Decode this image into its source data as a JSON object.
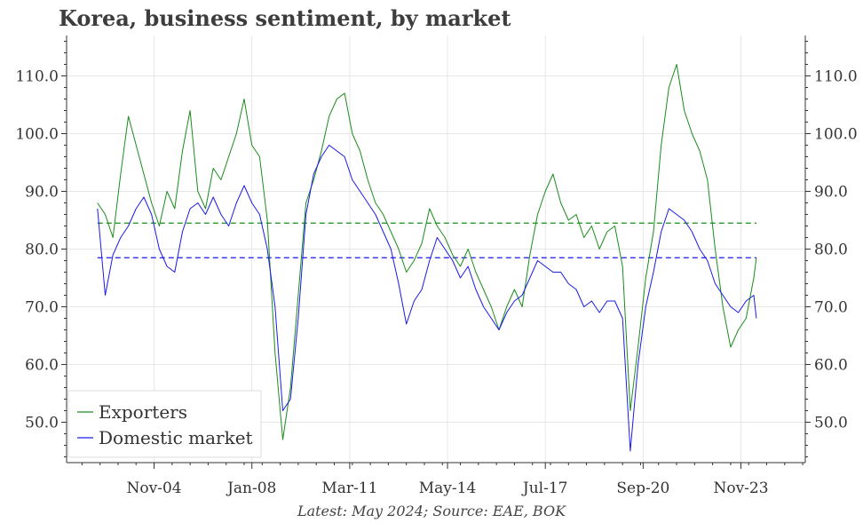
{
  "title": "Korea, business sentiment, by market",
  "caption": "Latest: May 2024; Source: EAE, BOK",
  "chart_data": {
    "type": "line",
    "title": "Korea, business sentiment, by market",
    "xlabel": "",
    "ylabel": "",
    "ylim": [
      43,
      117
    ],
    "xlim": [
      "2002-01",
      "2025-12"
    ],
    "yticks": [
      "50.0",
      "60.0",
      "70.0",
      "80.0",
      "90.0",
      "100.0",
      "110.0"
    ],
    "xticks": [
      {
        "label": "Nov-04",
        "date": "2004-11"
      },
      {
        "label": "Jan-08",
        "date": "2008-01"
      },
      {
        "label": "Mar-11",
        "date": "2011-03"
      },
      {
        "label": "May-14",
        "date": "2014-05"
      },
      {
        "label": "Jul-17",
        "date": "2017-07"
      },
      {
        "label": "Sep-20",
        "date": "2020-09"
      },
      {
        "label": "Nov-23",
        "date": "2023-11"
      }
    ],
    "grid": true,
    "legend_position": "bottom-left",
    "series": [
      {
        "name": "Exporters",
        "color": "#1a8c1a",
        "mean": 84.5,
        "x": [
          "2003-01",
          "2003-04",
          "2003-07",
          "2003-10",
          "2004-01",
          "2004-04",
          "2004-07",
          "2004-10",
          "2005-01",
          "2005-04",
          "2005-07",
          "2005-10",
          "2006-01",
          "2006-04",
          "2006-07",
          "2006-10",
          "2007-01",
          "2007-04",
          "2007-07",
          "2007-10",
          "2008-01",
          "2008-04",
          "2008-07",
          "2008-10",
          "2009-01",
          "2009-04",
          "2009-07",
          "2009-10",
          "2010-01",
          "2010-04",
          "2010-07",
          "2010-10",
          "2011-01",
          "2011-04",
          "2011-07",
          "2011-10",
          "2012-01",
          "2012-04",
          "2012-07",
          "2012-10",
          "2013-01",
          "2013-04",
          "2013-07",
          "2013-10",
          "2014-01",
          "2014-04",
          "2014-07",
          "2014-10",
          "2015-01",
          "2015-04",
          "2015-07",
          "2015-10",
          "2016-01",
          "2016-04",
          "2016-07",
          "2016-10",
          "2017-01",
          "2017-04",
          "2017-07",
          "2017-10",
          "2018-01",
          "2018-04",
          "2018-07",
          "2018-10",
          "2019-01",
          "2019-04",
          "2019-07",
          "2019-10",
          "2020-01",
          "2020-04",
          "2020-07",
          "2020-10",
          "2021-01",
          "2021-04",
          "2021-07",
          "2021-10",
          "2022-01",
          "2022-04",
          "2022-07",
          "2022-10",
          "2023-01",
          "2023-04",
          "2023-07",
          "2023-10",
          "2024-01",
          "2024-04",
          "2024-05"
        ],
        "values": [
          88.0,
          86.0,
          82.0,
          93.0,
          103.0,
          98.0,
          93.0,
          88.0,
          84.0,
          90.0,
          87.0,
          97.0,
          104.0,
          90.0,
          87.0,
          94.0,
          92.0,
          96.0,
          100.0,
          106.0,
          98.0,
          96.0,
          85.0,
          62.0,
          47.0,
          56.0,
          72.0,
          88.0,
          92.0,
          97.0,
          103.0,
          106.0,
          107.0,
          100.0,
          97.0,
          92.0,
          88.0,
          86.0,
          83.0,
          80.0,
          76.0,
          78.0,
          81.0,
          87.0,
          84.0,
          82.0,
          79.0,
          77.0,
          80.0,
          76.0,
          73.0,
          70.0,
          66.0,
          70.0,
          73.0,
          70.0,
          79.0,
          86.0,
          90.0,
          93.0,
          88.0,
          85.0,
          86.0,
          82.0,
          84.0,
          80.0,
          83.0,
          84.0,
          77.0,
          52.0,
          63.0,
          75.0,
          83.0,
          98.0,
          108.0,
          112.0,
          104.0,
          100.0,
          97.0,
          92.0,
          80.0,
          70.0,
          63.0,
          66.0,
          68.0,
          75.0,
          78.5
        ]
      },
      {
        "name": "Domestic market",
        "color": "#1a1ae6",
        "mean": 78.5,
        "x": [
          "2003-01",
          "2003-04",
          "2003-07",
          "2003-10",
          "2004-01",
          "2004-04",
          "2004-07",
          "2004-10",
          "2005-01",
          "2005-04",
          "2005-07",
          "2005-10",
          "2006-01",
          "2006-04",
          "2006-07",
          "2006-10",
          "2007-01",
          "2007-04",
          "2007-07",
          "2007-10",
          "2008-01",
          "2008-04",
          "2008-07",
          "2008-10",
          "2009-01",
          "2009-04",
          "2009-07",
          "2009-10",
          "2010-01",
          "2010-04",
          "2010-07",
          "2010-10",
          "2011-01",
          "2011-04",
          "2011-07",
          "2011-10",
          "2012-01",
          "2012-04",
          "2012-07",
          "2012-10",
          "2013-01",
          "2013-04",
          "2013-07",
          "2013-10",
          "2014-01",
          "2014-04",
          "2014-07",
          "2014-10",
          "2015-01",
          "2015-04",
          "2015-07",
          "2015-10",
          "2016-01",
          "2016-04",
          "2016-07",
          "2016-10",
          "2017-01",
          "2017-04",
          "2017-07",
          "2017-10",
          "2018-01",
          "2018-04",
          "2018-07",
          "2018-10",
          "2019-01",
          "2019-04",
          "2019-07",
          "2019-10",
          "2020-01",
          "2020-04",
          "2020-07",
          "2020-10",
          "2021-01",
          "2021-04",
          "2021-07",
          "2021-10",
          "2022-01",
          "2022-04",
          "2022-07",
          "2022-10",
          "2023-01",
          "2023-04",
          "2023-07",
          "2023-10",
          "2024-01",
          "2024-04",
          "2024-05"
        ],
        "values": [
          87.0,
          72.0,
          79.0,
          82.0,
          84.0,
          87.0,
          89.0,
          86.0,
          80.0,
          77.0,
          76.0,
          83.0,
          87.0,
          88.0,
          86.0,
          89.0,
          86.0,
          84.0,
          88.0,
          91.0,
          88.0,
          86.0,
          80.0,
          70.0,
          52.0,
          54.0,
          68.0,
          86.0,
          93.0,
          96.0,
          98.0,
          97.0,
          96.0,
          92.0,
          90.0,
          88.0,
          86.0,
          83.0,
          80.0,
          74.0,
          67.0,
          71.0,
          73.0,
          78.0,
          82.0,
          80.0,
          78.0,
          75.0,
          77.0,
          73.0,
          70.0,
          68.0,
          66.0,
          69.0,
          71.0,
          72.0,
          75.0,
          78.0,
          77.0,
          76.0,
          76.0,
          74.0,
          73.0,
          70.0,
          71.0,
          69.0,
          71.0,
          71.0,
          68.0,
          45.0,
          60.0,
          70.0,
          76.0,
          83.0,
          87.0,
          86.0,
          85.0,
          83.0,
          80.0,
          78.0,
          74.0,
          72.0,
          70.0,
          69.0,
          71.0,
          72.0,
          68.0
        ]
      }
    ]
  }
}
